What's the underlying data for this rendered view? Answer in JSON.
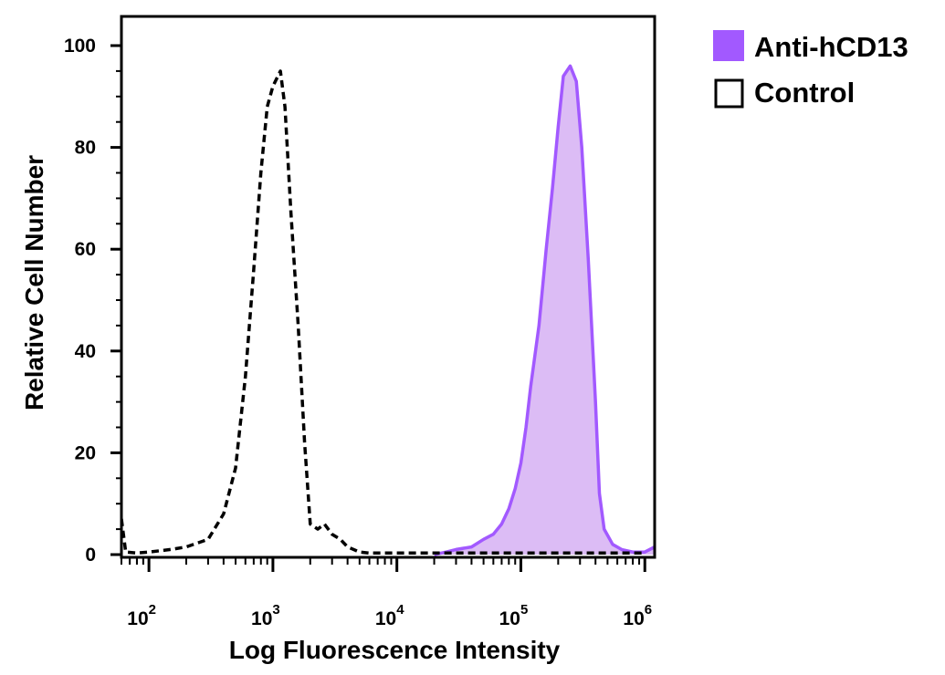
{
  "chart_data": {
    "type": "area",
    "xlabel": "Log Fluorescence Intensity",
    "ylabel": "Relative Cell Number",
    "xscale": "log",
    "xlim": [
      60,
      1200000
    ],
    "ylim": [
      0,
      100
    ],
    "xticks": [
      {
        "base": "10",
        "exp": "2",
        "value": 100
      },
      {
        "base": "10",
        "exp": "3",
        "value": 1000
      },
      {
        "base": "10",
        "exp": "4",
        "value": 10000
      },
      {
        "base": "10",
        "exp": "5",
        "value": 100000
      },
      {
        "base": "10",
        "exp": "6",
        "value": 1000000
      }
    ],
    "yticks": [
      "0",
      "20",
      "40",
      "60",
      "80",
      "100"
    ],
    "grid": false,
    "legend_position": "top-right, outside plot",
    "series": [
      {
        "name": "Anti-hCD13",
        "style": "filled",
        "color": "#a259ff",
        "fill": "#dcbcf5",
        "points": [
          [
            20000,
            0
          ],
          [
            25000,
            0.5
          ],
          [
            30000,
            1
          ],
          [
            40000,
            1.5
          ],
          [
            50000,
            3
          ],
          [
            60000,
            4
          ],
          [
            70000,
            6
          ],
          [
            80000,
            9
          ],
          [
            90000,
            13
          ],
          [
            100000,
            18
          ],
          [
            110000,
            25
          ],
          [
            120000,
            33
          ],
          [
            140000,
            45
          ],
          [
            160000,
            60
          ],
          [
            180000,
            72
          ],
          [
            200000,
            84
          ],
          [
            220000,
            94
          ],
          [
            250000,
            96
          ],
          [
            280000,
            93
          ],
          [
            310000,
            80
          ],
          [
            350000,
            58
          ],
          [
            400000,
            30
          ],
          [
            430000,
            12
          ],
          [
            470000,
            5
          ],
          [
            550000,
            2
          ],
          [
            650000,
            1
          ],
          [
            800000,
            0.5
          ],
          [
            1000000,
            0.5
          ],
          [
            1200000,
            1.5
          ]
        ]
      },
      {
        "name": "Control",
        "style": "dashed",
        "color": "#000000",
        "points": [
          [
            60,
            7
          ],
          [
            65,
            0.5
          ],
          [
            80,
            0.3
          ],
          [
            100,
            0.5
          ],
          [
            150,
            1
          ],
          [
            200,
            1.5
          ],
          [
            300,
            3
          ],
          [
            400,
            8
          ],
          [
            500,
            17
          ],
          [
            600,
            35
          ],
          [
            700,
            56
          ],
          [
            800,
            75
          ],
          [
            900,
            88
          ],
          [
            1000,
            92
          ],
          [
            1150,
            95
          ],
          [
            1250,
            88
          ],
          [
            1400,
            67
          ],
          [
            1600,
            45
          ],
          [
            1800,
            22
          ],
          [
            2000,
            6
          ],
          [
            2300,
            5
          ],
          [
            2600,
            6
          ],
          [
            3000,
            4
          ],
          [
            3500,
            3
          ],
          [
            4000,
            1.5
          ],
          [
            5000,
            0.5
          ],
          [
            6000,
            0.3
          ],
          [
            10000,
            0.3
          ],
          [
            50000,
            0.3
          ],
          [
            200000,
            0.3
          ],
          [
            1000000,
            0.3
          ]
        ]
      }
    ]
  },
  "legend": {
    "items": [
      {
        "label": "Anti-hCD13",
        "swatch": "filled",
        "color": "#a259ff"
      },
      {
        "label": "Control",
        "swatch": "open",
        "color": "#000000"
      }
    ]
  }
}
